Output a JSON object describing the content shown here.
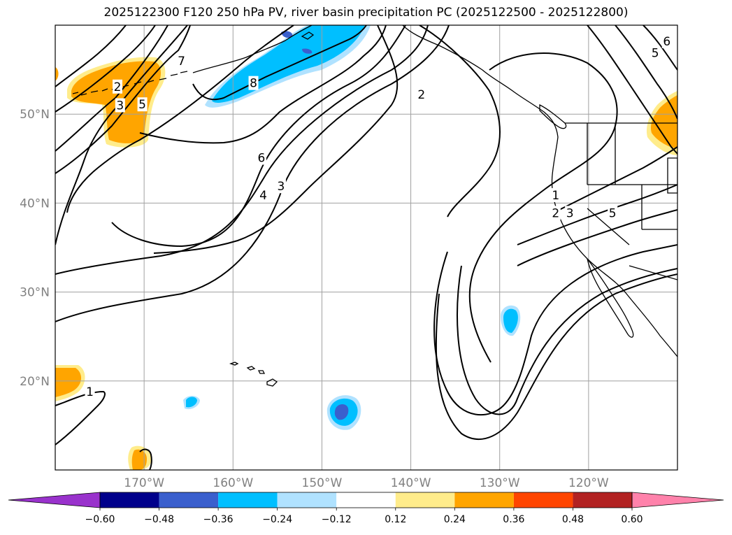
{
  "title": "2025122300 F120 250 hPa PV, river basin precipitation PC (2025122500 - 2025122800)",
  "map": {
    "lon_range": [
      -180,
      -110
    ],
    "lat_range": [
      10,
      60
    ],
    "lon_ticks": [
      {
        "value": -170,
        "label": "170°W"
      },
      {
        "value": -160,
        "label": "160°W"
      },
      {
        "value": -150,
        "label": "150°W"
      },
      {
        "value": -140,
        "label": "140°W"
      },
      {
        "value": -130,
        "label": "130°W"
      },
      {
        "value": -120,
        "label": "120°W"
      }
    ],
    "lat_ticks": [
      {
        "value": 20,
        "label": "20°N"
      },
      {
        "value": 30,
        "label": "30°N"
      },
      {
        "value": 40,
        "label": "40°N"
      },
      {
        "value": 50,
        "label": "50°N"
      }
    ],
    "grid": true,
    "contour_labels": [
      {
        "text": "7",
        "lon": -165.8,
        "lat": 56.0
      },
      {
        "text": "2",
        "lon": -173.0,
        "lat": 53.1
      },
      {
        "text": "3",
        "lon": -172.7,
        "lat": 51.0
      },
      {
        "text": "5",
        "lon": -170.2,
        "lat": 51.1
      },
      {
        "text": "8",
        "lon": -157.7,
        "lat": 53.5
      },
      {
        "text": "6",
        "lon": -156.8,
        "lat": 45.1
      },
      {
        "text": "4",
        "lon": -156.6,
        "lat": 40.9
      },
      {
        "text": "3",
        "lon": -154.6,
        "lat": 41.9
      },
      {
        "text": "2",
        "lon": -138.8,
        "lat": 52.2
      },
      {
        "text": "5",
        "lon": -112.5,
        "lat": 56.9
      },
      {
        "text": "6",
        "lon": -111.2,
        "lat": 58.2
      },
      {
        "text": "1",
        "lon": -123.7,
        "lat": 40.9
      },
      {
        "text": "2",
        "lon": -123.7,
        "lat": 38.9
      },
      {
        "text": "3",
        "lon": -122.1,
        "lat": 38.9
      },
      {
        "text": "5",
        "lon": -117.3,
        "lat": 38.9
      },
      {
        "text": "1",
        "lon": -176.1,
        "lat": 18.8
      }
    ]
  },
  "colorbar": {
    "boundaries": [
      "−0.60",
      "−0.48",
      "−0.36",
      "−0.24",
      "−0.12",
      "0.12",
      "0.24",
      "0.36",
      "0.48",
      "0.60"
    ],
    "colors": [
      "#9932cc",
      "#00008b",
      "#3a5fcd",
      "#00bfff",
      "#b0e2ff",
      "#ffffff",
      "#ffec8b",
      "#ffa500",
      "#ff4500",
      "#b22222",
      "#ff82ab"
    ]
  },
  "shading_colors": {
    "orange": "#ffa500",
    "light_yellow": "#ffec8b",
    "deep_sky_blue": "#00bfff",
    "light_blue": "#b0e2ff",
    "royal_blue": "#3a5fcd"
  }
}
